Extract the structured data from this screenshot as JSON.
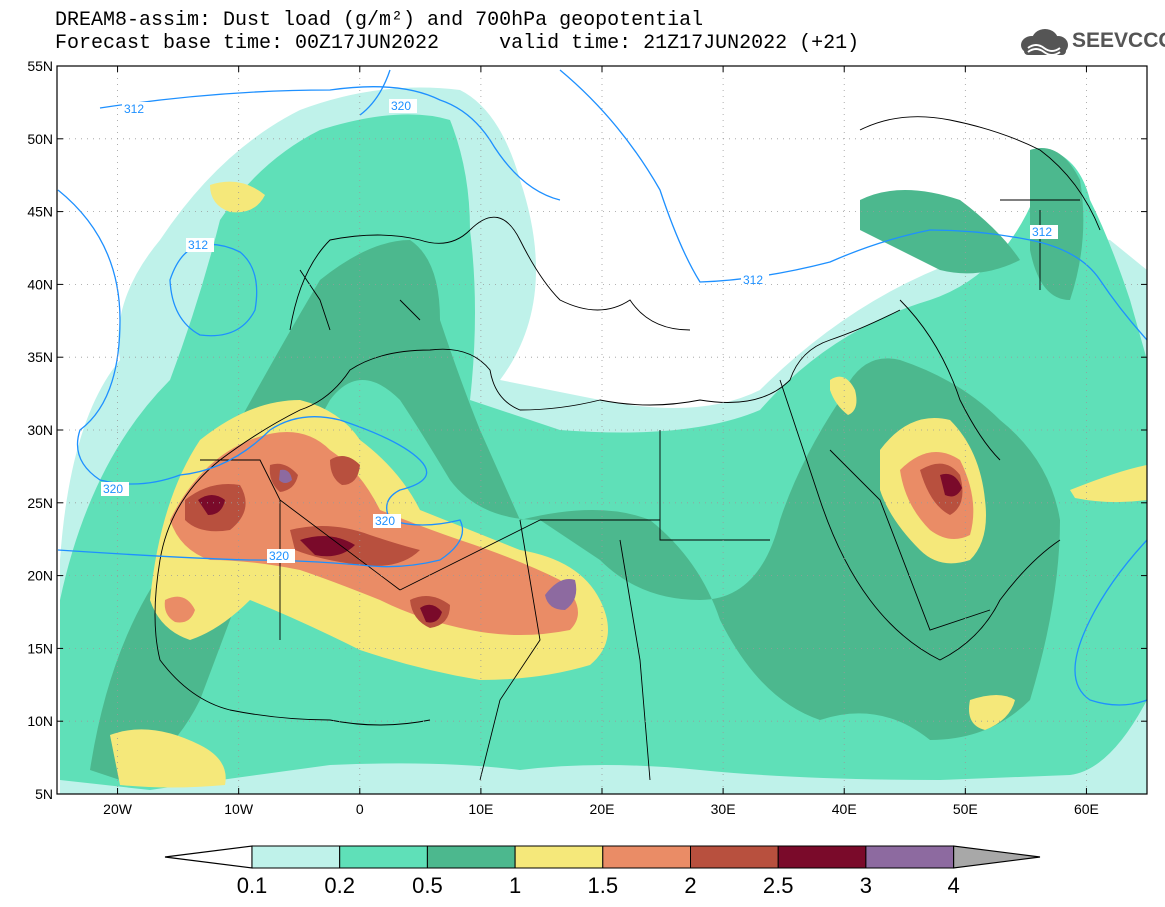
{
  "header": {
    "title_line1": "DREAM8-assim: Dust load (g/m²) and 700hPa geopotential",
    "title_line2": "Forecast base time: 00Z17JUN2022     valid time: 21Z17JUN2022 (+21)",
    "logo_text": "SEEVCCC"
  },
  "map": {
    "lon_range": [
      -25,
      65
    ],
    "lat_range": [
      5,
      55
    ],
    "lat_labels": [
      "55N",
      "50N",
      "45N",
      "40N",
      "35N",
      "30N",
      "25N",
      "20N",
      "15N",
      "10N",
      "5N"
    ],
    "lon_labels": [
      "20W",
      "10W",
      "0",
      "10E",
      "20E",
      "30E",
      "40E",
      "50E",
      "60E"
    ],
    "contour_labels": [
      "312",
      "320",
      "312",
      "312",
      "312",
      "320",
      "320"
    ],
    "contour_color": "#1e90ff"
  },
  "colorbar": {
    "labels": [
      "0.1",
      "0.2",
      "0.5",
      "1",
      "1.5",
      "2",
      "2.5",
      "3",
      "4"
    ],
    "colors": [
      "#bff2ea",
      "#5fe0b8",
      "#4cb88e",
      "#f5e87a",
      "#ea8c66",
      "#b8503e",
      "#7a0a2a",
      "#8d6aa0"
    ],
    "under_color": "#ffffff",
    "over_color": "#a8a8a8"
  }
}
